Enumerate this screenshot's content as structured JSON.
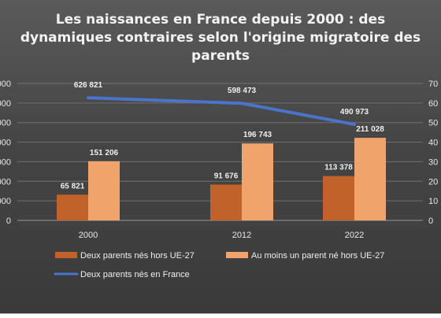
{
  "chart_data": {
    "type": "bar+line",
    "title": "Les naissances en France depuis 2000 : des dynamiques contraires selon l'origine migratoire des parents",
    "categories": [
      "2000",
      "2012",
      "2022"
    ],
    "series": [
      {
        "name": "Deux parents nés hors UE-27",
        "kind": "bar",
        "axis": "left",
        "color": "#c0622a",
        "values": [
          65821,
          91676,
          113378
        ],
        "labels": [
          "65 821",
          "91 676",
          "113 378"
        ]
      },
      {
        "name": "Au moins un parent né hors UE-27",
        "kind": "bar",
        "axis": "left",
        "color": "#f0a36b",
        "values": [
          151206,
          196743,
          211028
        ],
        "labels": [
          "151 206",
          "196 743",
          "211 028"
        ]
      },
      {
        "name": "Deux parents nés en France",
        "kind": "line",
        "axis": "right",
        "color": "#4a74c9",
        "values": [
          626821,
          598473,
          490973
        ],
        "labels": [
          "626 821",
          "598 473",
          "490 973"
        ]
      }
    ],
    "left_axis": {
      "min": 0,
      "max": 350000,
      "step": 50000,
      "tick_labels": [
        "0",
        "000",
        "000",
        "000",
        "000",
        "000",
        "000",
        "000"
      ]
    },
    "right_axis": {
      "min": 0,
      "max": 700000,
      "step": 100000,
      "tick_labels": [
        "0",
        "10",
        "20",
        "30",
        "40",
        "50",
        "60",
        "70"
      ]
    },
    "grid": true,
    "legend": "bottom"
  }
}
